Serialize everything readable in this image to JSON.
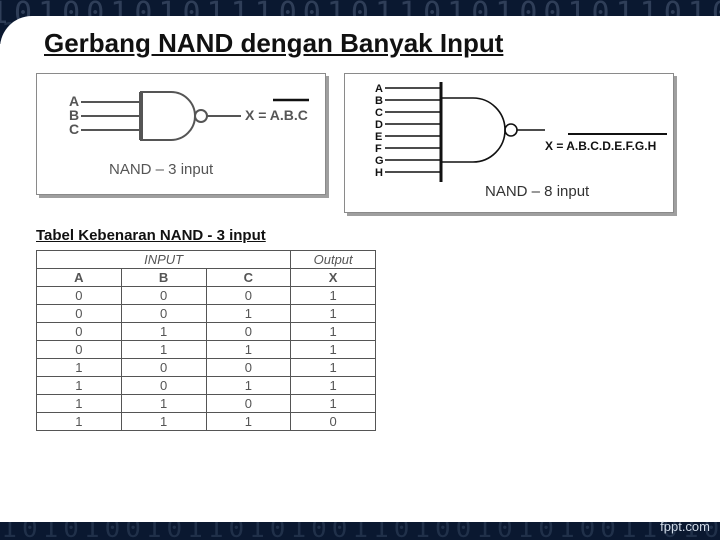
{
  "title": "Gerbang NAND dengan Banyak Input",
  "subtitle": "Tabel Kebenaran NAND - 3 input",
  "footer": "fppt.com",
  "colors": {
    "bg_dark": "#0a1830",
    "panel_border": "#8a8a8a",
    "panel_shadow": "#9f9f9f",
    "table_border": "#555555",
    "text_gray": "#666666",
    "text_black": "#111111"
  },
  "nand3": {
    "caption": "NAND – 3 input",
    "inputs": [
      "A",
      "B",
      "C"
    ],
    "output_label": "X = A.B.C",
    "overline": true
  },
  "nand8": {
    "caption": "NAND – 8 input",
    "inputs": [
      "A",
      "B",
      "C",
      "D",
      "E",
      "F",
      "G",
      "H"
    ],
    "output_label": "X = A.B.C.D.E.F.G.H",
    "overline": true
  },
  "truth_table": {
    "group_headers": {
      "input": "INPUT",
      "output": "Output"
    },
    "columns": [
      "A",
      "B",
      "C",
      "X"
    ],
    "rows": [
      [
        0,
        0,
        0,
        1
      ],
      [
        0,
        0,
        1,
        1
      ],
      [
        0,
        1,
        0,
        1
      ],
      [
        0,
        1,
        1,
        1
      ],
      [
        1,
        0,
        0,
        1
      ],
      [
        1,
        0,
        1,
        1
      ],
      [
        1,
        1,
        0,
        1
      ],
      [
        1,
        1,
        1,
        0
      ]
    ]
  }
}
